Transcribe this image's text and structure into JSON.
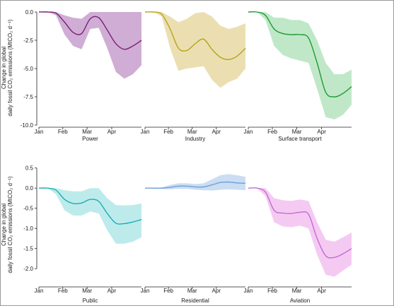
{
  "y_axis_label_lines": [
    "Change in global",
    "daily fossil CO₂ emissions (MtCO₂ d⁻¹)"
  ],
  "chart_data": [
    {
      "type": "area",
      "sector": "Power",
      "color": "#7a1f78",
      "fill": "#cba4cf",
      "x_ticks": [
        "Jan",
        "Feb",
        "Mar",
        "Apr"
      ],
      "ylim": [
        -10,
        0.5
      ],
      "y_ticks": [
        0.0,
        -2.5,
        -5.0,
        -7.5,
        -10.0
      ],
      "y_tick_labels": [
        "0.0",
        "-2.5",
        "-5.0",
        "-7.5",
        "-10.0"
      ],
      "x": [
        0,
        10,
        20,
        30,
        40,
        50,
        60,
        70,
        80,
        90,
        100,
        110,
        120
      ],
      "mean": [
        0,
        0,
        -0.1,
        -0.9,
        -1.8,
        -1.9,
        -0.6,
        -0.5,
        -1.6,
        -2.8,
        -3.3,
        -3.0,
        -2.5
      ],
      "upper": [
        0,
        0,
        0,
        -0.3,
        -0.5,
        -0.6,
        0,
        0,
        0,
        0,
        0,
        0,
        0
      ],
      "lower": [
        0,
        0,
        -0.3,
        -2.0,
        -3.0,
        -3.3,
        -1.5,
        -1.4,
        -3.2,
        -5.3,
        -5.9,
        -5.5,
        -4.7
      ]
    },
    {
      "type": "area",
      "sector": "Industry",
      "color": "#b8a21a",
      "fill": "#e9dcaa",
      "x_ticks": [
        "Jan",
        "Feb",
        "Mar",
        "Apr"
      ],
      "ylim": [
        -10,
        0.5
      ],
      "x": [
        0,
        10,
        20,
        30,
        40,
        50,
        60,
        70,
        80,
        90,
        100,
        110,
        120
      ],
      "mean": [
        0,
        0,
        -0.2,
        -1.5,
        -3.2,
        -3.4,
        -2.8,
        -2.4,
        -3.3,
        -4.0,
        -4.2,
        -3.9,
        -3.2
      ],
      "upper": [
        0,
        0,
        0,
        -0.4,
        -0.9,
        -0.6,
        -0.1,
        0,
        -0.4,
        -1.2,
        -1.5,
        -1.3,
        -1.0
      ],
      "lower": [
        0,
        0,
        -0.4,
        -3.2,
        -5.2,
        -5.0,
        -4.9,
        -4.8,
        -6.0,
        -6.7,
        -6.2,
        -5.9,
        -5.0
      ]
    },
    {
      "type": "area",
      "sector": "Surface transport",
      "color": "#1e9a37",
      "fill": "#b9e6c2",
      "x_ticks": [
        "Jan",
        "Feb",
        "Mar",
        "Apr"
      ],
      "ylim": [
        -10,
        0.5
      ],
      "x": [
        0,
        10,
        20,
        30,
        40,
        50,
        60,
        70,
        80,
        90,
        100,
        110,
        120
      ],
      "mean": [
        0,
        0,
        -0.3,
        -1.5,
        -1.9,
        -2.0,
        -2.0,
        -2.3,
        -4.5,
        -7.1,
        -7.5,
        -7.2,
        -6.6
      ],
      "upper": [
        0,
        0,
        0,
        -0.5,
        -0.5,
        -0.7,
        -0.7,
        -1.0,
        -2.5,
        -4.5,
        -5.5,
        -5.5,
        -5.1
      ],
      "lower": [
        0,
        0,
        -0.7,
        -3.0,
        -3.8,
        -4.1,
        -4.3,
        -4.5,
        -6.8,
        -9.3,
        -9.5,
        -9.1,
        -8.2
      ]
    },
    {
      "type": "area",
      "sector": "Public",
      "color": "#1aaeb4",
      "fill": "#b6e9ea",
      "x_ticks": [
        "Jan",
        "Feb",
        "Mar",
        "Apr"
      ],
      "ylim": [
        -2.4,
        0.6
      ],
      "y_ticks": [
        0.5,
        0.0,
        -0.5,
        -1.0,
        -1.5,
        -2.0
      ],
      "y_tick_labels": [
        "0.5",
        "0.0",
        "-0.5",
        "-1.0",
        "-1.5",
        "-2.0"
      ],
      "x": [
        0,
        10,
        20,
        30,
        40,
        50,
        60,
        70,
        80,
        90,
        100,
        110,
        120
      ],
      "mean": [
        0,
        0,
        -0.05,
        -0.28,
        -0.38,
        -0.37,
        -0.28,
        -0.33,
        -0.63,
        -0.87,
        -0.88,
        -0.84,
        -0.78
      ],
      "upper": [
        0,
        0,
        0,
        -0.05,
        -0.08,
        -0.08,
        0,
        0,
        -0.25,
        -0.42,
        -0.43,
        -0.42,
        -0.38
      ],
      "lower": [
        0,
        0,
        -0.15,
        -0.55,
        -0.68,
        -0.68,
        -0.58,
        -0.63,
        -1.05,
        -1.38,
        -1.38,
        -1.33,
        -1.22
      ]
    },
    {
      "type": "area",
      "sector": "Residential",
      "color": "#6f9fd8",
      "fill": "#c5d9f2",
      "x_ticks": [
        "Jan",
        "Feb",
        "Mar",
        "Apr"
      ],
      "ylim": [
        -2.4,
        0.6
      ],
      "x": [
        0,
        10,
        20,
        30,
        40,
        50,
        60,
        70,
        80,
        90,
        100,
        110,
        120
      ],
      "mean": [
        0,
        0,
        0,
        0.02,
        0.05,
        0.05,
        0.03,
        0.03,
        0.08,
        0.14,
        0.15,
        0.13,
        0.12
      ],
      "upper": [
        0,
        0,
        0.02,
        0.08,
        0.12,
        0.12,
        0.1,
        0.12,
        0.22,
        0.32,
        0.35,
        0.32,
        0.28
      ],
      "lower": [
        0,
        0,
        -0.02,
        -0.03,
        -0.02,
        -0.02,
        -0.04,
        -0.05,
        -0.06,
        -0.04,
        -0.03,
        -0.04,
        -0.05
      ]
    },
    {
      "type": "area",
      "sector": "Aviation",
      "color": "#c36bd1",
      "fill": "#f4c4f1",
      "x_ticks": [
        "Jan",
        "Feb",
        "Mar",
        "Apr"
      ],
      "ylim": [
        -2.4,
        0.6
      ],
      "x": [
        0,
        10,
        20,
        30,
        40,
        50,
        60,
        70,
        80,
        90,
        100,
        110,
        120
      ],
      "mean": [
        0,
        0,
        -0.1,
        -0.55,
        -0.62,
        -0.63,
        -0.6,
        -0.65,
        -1.25,
        -1.68,
        -1.72,
        -1.63,
        -1.5
      ],
      "upper": [
        0,
        0,
        0,
        -0.25,
        -0.3,
        -0.32,
        -0.28,
        -0.32,
        -0.85,
        -1.28,
        -1.33,
        -1.22,
        -1.1
      ],
      "lower": [
        0,
        0,
        -0.2,
        -0.85,
        -0.95,
        -0.97,
        -0.93,
        -1.0,
        -1.65,
        -2.15,
        -2.2,
        -2.05,
        -1.9
      ]
    }
  ]
}
